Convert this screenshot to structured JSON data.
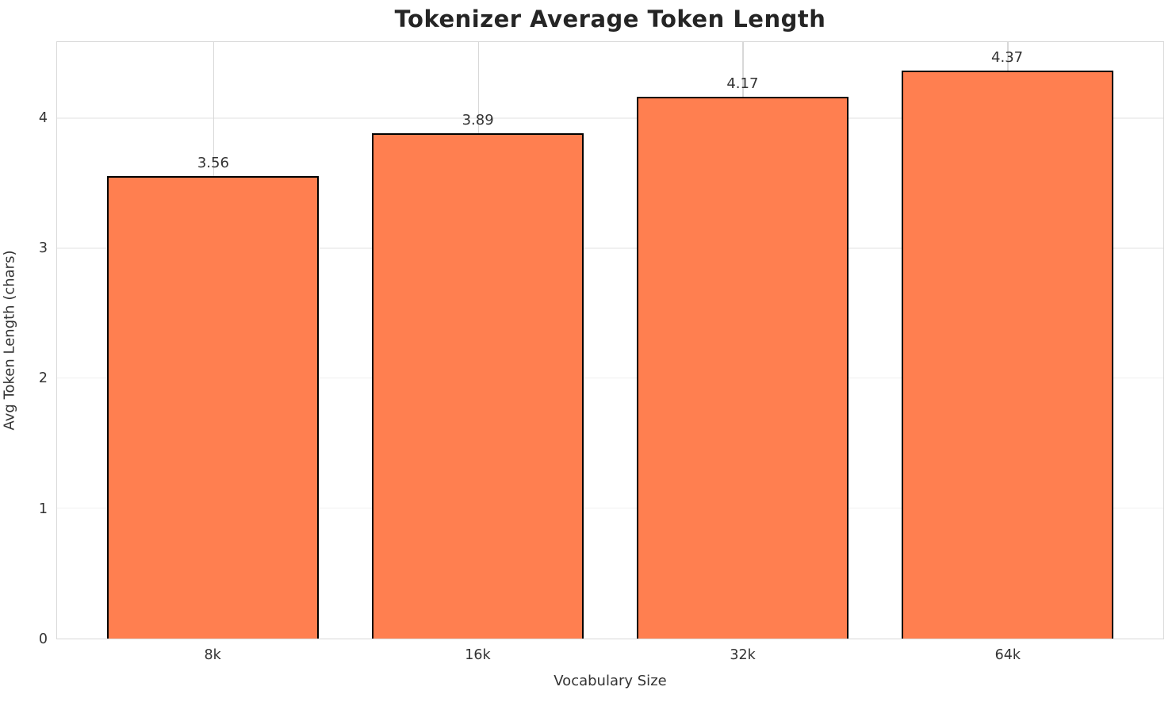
{
  "chart_data": {
    "type": "bar",
    "title": "Tokenizer Average Token Length",
    "xlabel": "Vocabulary Size",
    "ylabel": "Avg Token Length (chars)",
    "categories": [
      "8k",
      "16k",
      "32k",
      "64k"
    ],
    "values": [
      3.56,
      3.89,
      4.17,
      4.37
    ],
    "value_labels": [
      "3.56",
      "3.89",
      "4.17",
      "4.37"
    ],
    "yticks": [
      0,
      1,
      2,
      3,
      4
    ],
    "ylim": [
      0,
      4.59
    ],
    "grid": true,
    "legend": false,
    "colors": {
      "bar_fill": "#ff7f50",
      "bar_edge": "#000000",
      "spine": "#d9d9d9",
      "grid_horizontal": "#f0f0f0",
      "grid_vertical": "#d8d8d8",
      "text": "#333333",
      "title": "#252525"
    }
  }
}
